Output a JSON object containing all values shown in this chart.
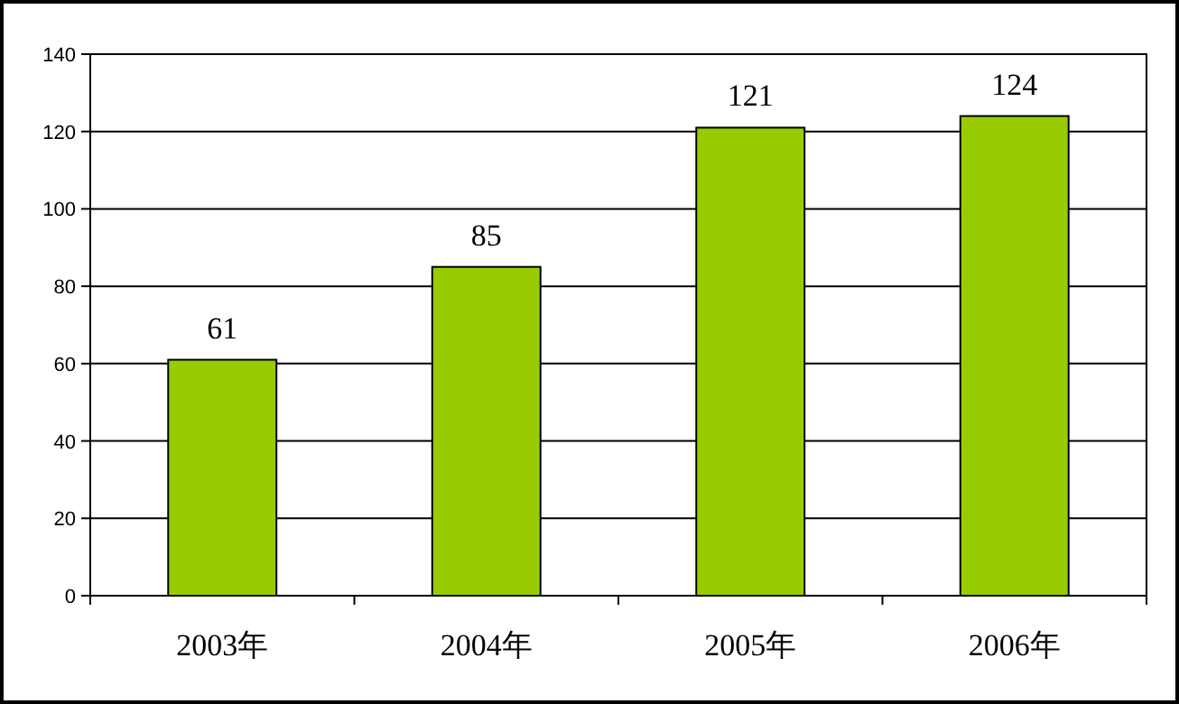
{
  "chart_data": {
    "type": "bar",
    "categories": [
      "2003年",
      "2004年",
      "2005年",
      "2006年"
    ],
    "values": [
      61,
      85,
      121,
      124
    ],
    "color": "#99cc00",
    "ylim": [
      0,
      140
    ],
    "yticks": [
      0,
      20,
      40,
      60,
      80,
      100,
      120,
      140
    ],
    "grid": "y",
    "data_labels": true
  }
}
